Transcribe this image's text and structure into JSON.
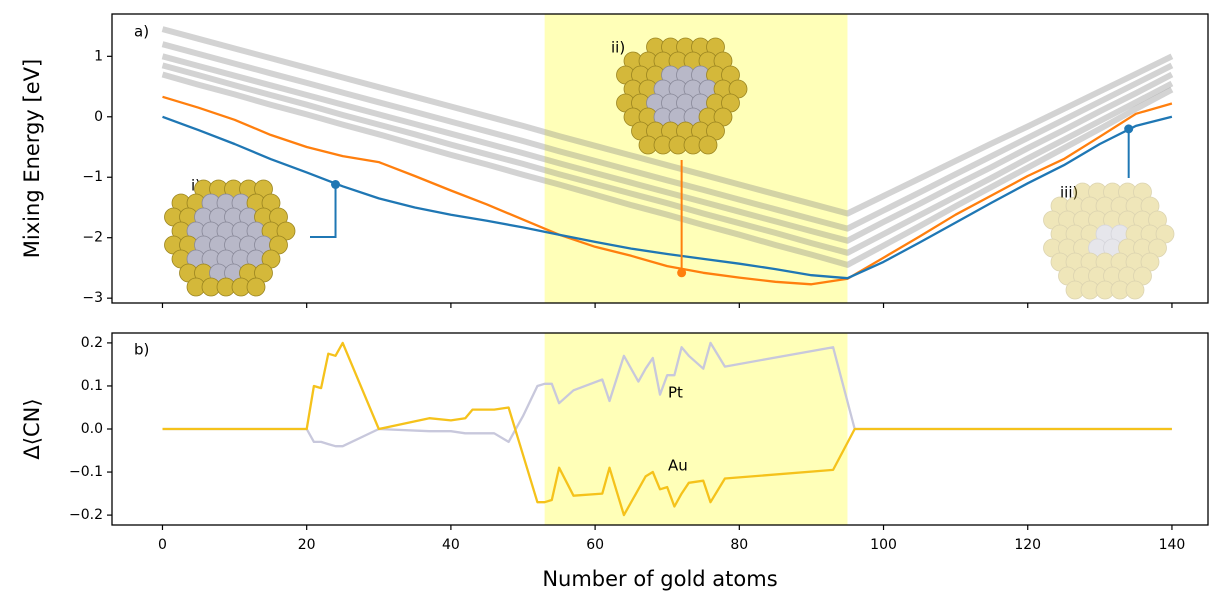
{
  "chart_data": [
    {
      "type": "line",
      "y_label": "Mixing Energy [eV]",
      "annotations": [
        "a)",
        "i)",
        "ii)",
        "iii)"
      ],
      "x": [
        0,
        5,
        10,
        15,
        20,
        25,
        30,
        35,
        40,
        45,
        50,
        55,
        60,
        65,
        70,
        75,
        80,
        85,
        90,
        95,
        100,
        105,
        110,
        115,
        120,
        125,
        130,
        135,
        140
      ],
      "series": [
        {
          "color": "#808080",
          "values": [
            1.45,
            1.29,
            1.13,
            0.97,
            0.81,
            0.65,
            0.49,
            0.33,
            0.17,
            0.01,
            -0.15,
            -0.32,
            -0.48,
            -0.64,
            -0.8,
            -0.96,
            -1.12,
            -1.28,
            -1.44,
            -1.6,
            -1.31,
            -1.02,
            -0.73,
            -0.44,
            -0.16,
            0.13,
            0.42,
            0.71,
            1.0
          ]
        },
        {
          "color": "#808080",
          "values": [
            1.2,
            1.04,
            0.88,
            0.72,
            0.56,
            0.4,
            0.24,
            0.08,
            -0.08,
            -0.24,
            -0.4,
            -0.57,
            -0.73,
            -0.89,
            -1.05,
            -1.21,
            -1.37,
            -1.53,
            -1.69,
            -1.85,
            -1.55,
            -1.25,
            -0.95,
            -0.65,
            -0.35,
            -0.05,
            0.25,
            0.55,
            0.85
          ]
        },
        {
          "color": "#808080",
          "values": [
            1.0,
            0.84,
            0.68,
            0.52,
            0.36,
            0.2,
            0.04,
            -0.12,
            -0.28,
            -0.44,
            -0.6,
            -0.77,
            -0.93,
            -1.09,
            -1.25,
            -1.41,
            -1.57,
            -1.73,
            -1.89,
            -2.05,
            -1.74,
            -1.44,
            -1.13,
            -0.83,
            -0.52,
            -0.22,
            0.09,
            0.39,
            0.7
          ]
        },
        {
          "color": "#808080",
          "values": [
            0.85,
            0.69,
            0.52,
            0.36,
            0.2,
            0.03,
            -0.13,
            -0.29,
            -0.46,
            -0.62,
            -0.78,
            -0.95,
            -1.11,
            -1.27,
            -1.43,
            -1.6,
            -1.76,
            -1.92,
            -2.09,
            -2.25,
            -1.94,
            -1.63,
            -1.32,
            -1.01,
            -0.69,
            -0.38,
            -0.07,
            0.24,
            0.55
          ]
        },
        {
          "color": "#808080",
          "values": [
            0.7,
            0.53,
            0.37,
            0.2,
            0.04,
            -0.13,
            -0.29,
            -0.46,
            -0.63,
            -0.79,
            -0.96,
            -1.12,
            -1.29,
            -1.46,
            -1.62,
            -1.79,
            -1.95,
            -2.12,
            -2.28,
            -2.45,
            -2.13,
            -1.81,
            -1.48,
            -1.16,
            -0.84,
            -0.52,
            -0.2,
            0.13,
            0.45
          ]
        },
        {
          "color": "#ff7f0e",
          "values": [
            0.33,
            0.15,
            -0.05,
            -0.3,
            -0.5,
            -0.65,
            -0.75,
            -0.98,
            -1.22,
            -1.45,
            -1.7,
            -1.95,
            -2.15,
            -2.3,
            -2.47,
            -2.58,
            -2.66,
            -2.73,
            -2.77,
            -2.68,
            -2.33,
            -1.98,
            -1.62,
            -1.3,
            -0.98,
            -0.7,
            -0.33,
            0.05,
            0.22
          ]
        },
        {
          "color": "#1f77b4",
          "values": [
            0,
            -0.22,
            -0.45,
            -0.7,
            -0.92,
            -1.15,
            -1.35,
            -1.5,
            -1.62,
            -1.72,
            -1.83,
            -1.95,
            -2.07,
            -2.18,
            -2.27,
            -2.35,
            -2.43,
            -2.52,
            -2.62,
            -2.67,
            -2.4,
            -2.08,
            -1.75,
            -1.42,
            -1.1,
            -0.8,
            -0.45,
            -0.15,
            0
          ]
        }
      ],
      "markers": [
        {
          "x": 24,
          "y": -1.12,
          "color": "#1f77b4"
        },
        {
          "x": 72,
          "y": -2.58,
          "color": "#ff7f0e"
        },
        {
          "x": 134,
          "y": -0.2,
          "color": "#1f77b4"
        }
      ],
      "highlight": [
        53,
        95
      ],
      "highlight_color": "#ffffa0",
      "xlim": [
        -7,
        145
      ],
      "ylim": [
        -3.08,
        1.7
      ],
      "xticks": [
        0,
        20,
        40,
        60,
        80,
        100,
        120,
        140
      ],
      "yticks": [
        {
          "value": -3,
          "label": "−3"
        },
        {
          "value": -2,
          "label": "−2"
        },
        {
          "value": -1,
          "label": "−1"
        },
        0,
        1
      ]
    },
    {
      "type": "line",
      "y_label": "Δ⟨CN⟩",
      "x_label": "Number of gold atoms",
      "annotations": [
        "b)"
      ],
      "x": [
        0,
        20,
        21,
        22,
        23,
        24,
        25,
        30,
        37,
        40,
        42,
        43,
        46,
        48,
        50,
        52,
        53,
        54,
        55,
        57,
        61,
        62,
        64,
        66,
        67,
        68,
        69,
        70,
        71,
        72,
        73,
        75,
        76,
        78,
        93,
        96,
        140
      ],
      "series": [
        {
          "name": "Pt",
          "color": "#c8c8dc",
          "values": [
            0,
            0,
            -0.03,
            -0.03,
            -0.035,
            -0.04,
            -0.04,
            0,
            -0.005,
            -0.005,
            -0.01,
            -0.01,
            -0.01,
            -0.03,
            0.03,
            0.1,
            0.105,
            0.105,
            0.06,
            0.09,
            0.115,
            0.065,
            0.17,
            0.11,
            0.14,
            0.165,
            0.08,
            0.125,
            0.125,
            0.19,
            0.17,
            0.14,
            0.2,
            0.145,
            0.19,
            0,
            0
          ]
        },
        {
          "name": "Au",
          "color": "#f5c21b",
          "values": [
            0,
            0,
            0.1,
            0.095,
            0.175,
            0.17,
            0.2,
            0,
            0.025,
            0.02,
            0.025,
            0.045,
            0.045,
            0.05,
            -0.06,
            -0.17,
            -0.17,
            -0.165,
            -0.09,
            -0.155,
            -0.15,
            -0.09,
            -0.2,
            -0.14,
            -0.11,
            -0.1,
            -0.14,
            -0.135,
            -0.18,
            -0.15,
            -0.125,
            -0.12,
            -0.17,
            -0.115,
            -0.095,
            0,
            0
          ]
        }
      ],
      "highlight": [
        53,
        95
      ],
      "highlight_color": "#ffffa0",
      "xlim": [
        -7,
        145
      ],
      "ylim": [
        -0.223,
        0.223
      ],
      "xticks": [
        0,
        20,
        40,
        60,
        80,
        100,
        120,
        140
      ],
      "yticks": [
        {
          "value": -0.2,
          "label": "−0.2"
        },
        {
          "value": -0.1,
          "label": "−0.1"
        },
        {
          "value": 0,
          "label": "0.0"
        },
        0.1,
        0.2
      ]
    }
  ]
}
